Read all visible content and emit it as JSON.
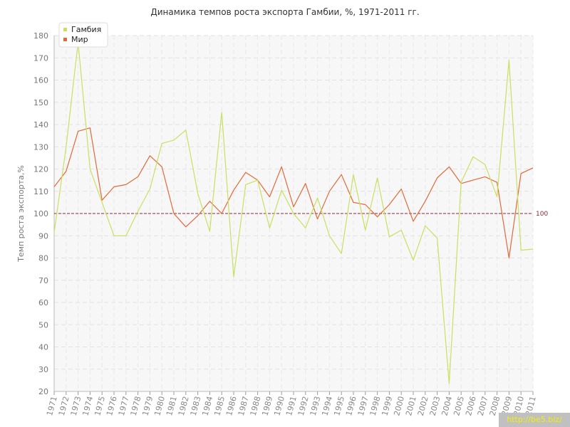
{
  "chart_data": {
    "type": "line",
    "title": "Динамика темпов роста экспорта Гамбии, %, 1971-2011 гг.",
    "ylabel": "Темп роста экспорта,%",
    "xlabel": "",
    "ylim": [
      20,
      180
    ],
    "yticks": [
      "20",
      "30",
      "40",
      "50",
      "60",
      "70",
      "80",
      "90",
      "100",
      "110",
      "120",
      "130",
      "140",
      "150",
      "160",
      "170",
      "180"
    ],
    "categories": [
      "1971",
      "1972",
      "1973",
      "1974",
      "1975",
      "1976",
      "1977",
      "1978",
      "1979",
      "1980",
      "1981",
      "1982",
      "1983",
      "1984",
      "1985",
      "1986",
      "1987",
      "1988",
      "1989",
      "1990",
      "1991",
      "1992",
      "1993",
      "1994",
      "1995",
      "1996",
      "1997",
      "1998",
      "1999",
      "2000",
      "2001",
      "2002",
      "2003",
      "2004",
      "2005",
      "2006",
      "2007",
      "2008",
      "2009",
      "2010",
      "2011"
    ],
    "series": [
      {
        "name": "Гамбия",
        "color": "#c8e060",
        "values": [
          91.5,
          130,
          177,
          120,
          105,
          90,
          90,
          101,
          111,
          131.5,
          133,
          137.5,
          109,
          92,
          145.5,
          71.5,
          113,
          115,
          93.5,
          110.5,
          100,
          93.5,
          107,
          90,
          82,
          117.5,
          92.5,
          116,
          89.5,
          92.5,
          79,
          94.5,
          89,
          23.5,
          114,
          125.5,
          122,
          107.5,
          169,
          83.5,
          84
        ]
      },
      {
        "name": "Мир",
        "color": "#e06a3a",
        "values": [
          112,
          119,
          137,
          138.5,
          106,
          112,
          113,
          116.5,
          126,
          121,
          100,
          94,
          99,
          105.5,
          100,
          110.5,
          118.5,
          115,
          107.5,
          121,
          103,
          113.5,
          97.5,
          110,
          117.5,
          105,
          104,
          98.5,
          104,
          111,
          96.5,
          105.5,
          116,
          121,
          113.5,
          115,
          116.5,
          114,
          80,
          118,
          120.5
        ]
      }
    ],
    "reference_line": {
      "value": 100,
      "label": "100",
      "color": "#8b2a3a"
    },
    "legend": {
      "position": "top-left"
    },
    "grid": true
  },
  "watermark": "http://be5.biz/"
}
